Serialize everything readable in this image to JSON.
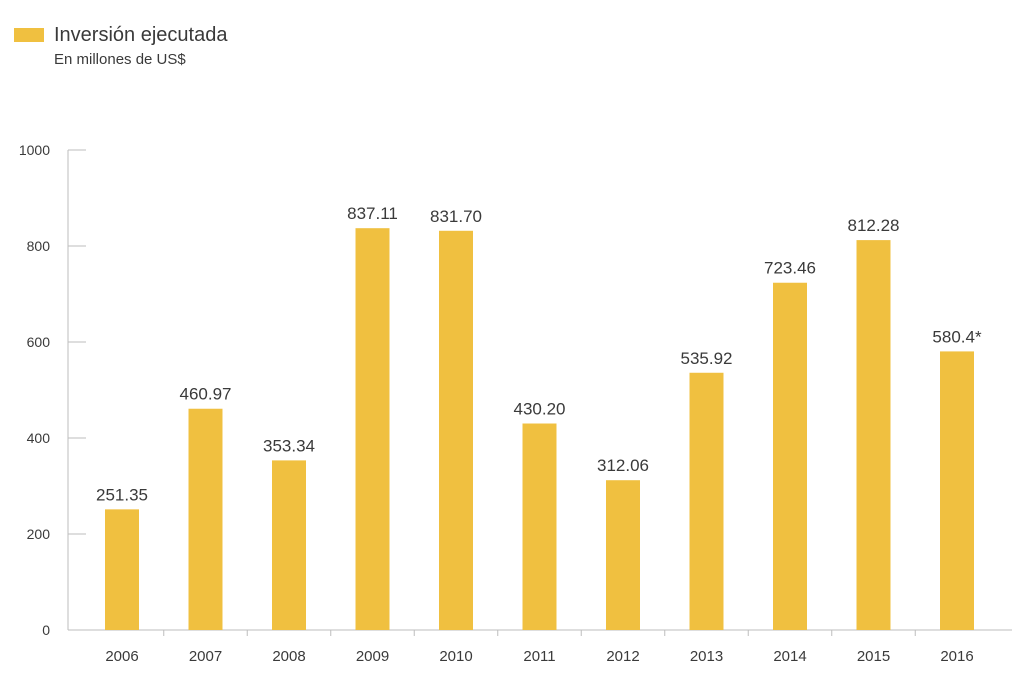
{
  "legend": {
    "title": "Inversión ejecutada",
    "subtitle": "En millones de US$"
  },
  "colors": {
    "bar": "#F0C040",
    "axis": "#bdbdbd",
    "text": "#3a3a3a"
  },
  "chart_data": {
    "type": "bar",
    "categories": [
      "2006",
      "2007",
      "2008",
      "2009",
      "2010",
      "2011",
      "2012",
      "2013",
      "2014",
      "2015",
      "2016"
    ],
    "values": [
      251.35,
      460.97,
      353.34,
      837.11,
      831.7,
      430.2,
      312.06,
      535.92,
      723.46,
      812.28,
      580.4
    ],
    "value_labels": [
      "251.35",
      "460.97",
      "353.34",
      "837.11",
      "831.70",
      "430.20",
      "312.06",
      "535.92",
      "723.46",
      "812.28",
      "580.4*"
    ],
    "yticks": [
      "0",
      "200",
      "400",
      "600",
      "800",
      "1000"
    ],
    "ylim": [
      0,
      1000
    ],
    "grid": false,
    "legend_position": "top-left"
  }
}
